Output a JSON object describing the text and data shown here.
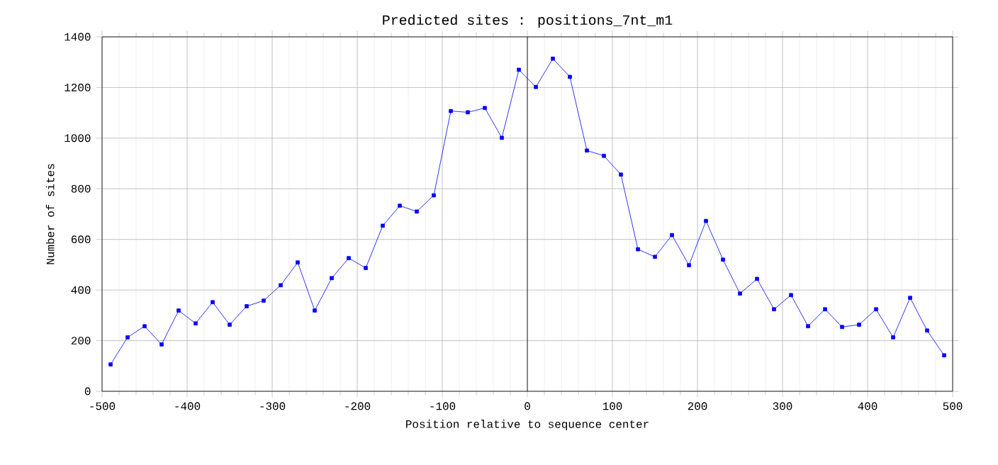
{
  "chart_data": {
    "type": "line",
    "title": "Predicted sites : positions_7nt_m1",
    "xlabel": "Position relative to sequence center",
    "ylabel": "Number of sites",
    "x": [
      -490,
      -470,
      -450,
      -430,
      -410,
      -390,
      -370,
      -350,
      -330,
      -310,
      -290,
      -270,
      -250,
      -230,
      -210,
      -190,
      -170,
      -150,
      -130,
      -110,
      -90,
      -70,
      -50,
      -30,
      -10,
      10,
      30,
      50,
      70,
      90,
      110,
      130,
      150,
      170,
      190,
      210,
      230,
      250,
      270,
      290,
      310,
      330,
      350,
      370,
      390,
      410,
      430,
      450,
      470,
      490
    ],
    "series": [
      {
        "color": "#0000ff",
        "values": [
          106,
          213,
          257,
          185,
          319,
          268,
          352,
          263,
          336,
          358,
          419,
          509,
          319,
          447,
          526,
          487,
          654,
          733,
          710,
          774,
          1107,
          1102,
          1119,
          1001,
          1270,
          1202,
          1314,
          1242,
          951,
          930,
          856,
          561,
          531,
          617,
          498,
          673,
          520,
          386,
          444,
          324,
          380,
          257,
          324,
          254,
          263,
          324,
          213,
          369,
          240,
          142
        ]
      }
    ],
    "xlim": [
      -500,
      500
    ],
    "xticks": [
      -500,
      -400,
      -300,
      -200,
      -100,
      0,
      100,
      200,
      300,
      400,
      500
    ],
    "ylim": [
      0,
      1400
    ],
    "yticks": [
      0,
      200,
      400,
      600,
      800,
      1000,
      1200,
      1400
    ],
    "ref_lines": [
      {
        "axis": "x",
        "value": 0,
        "color": "#000000"
      }
    ],
    "grid": true,
    "marker": "square",
    "line_style": "solid"
  }
}
